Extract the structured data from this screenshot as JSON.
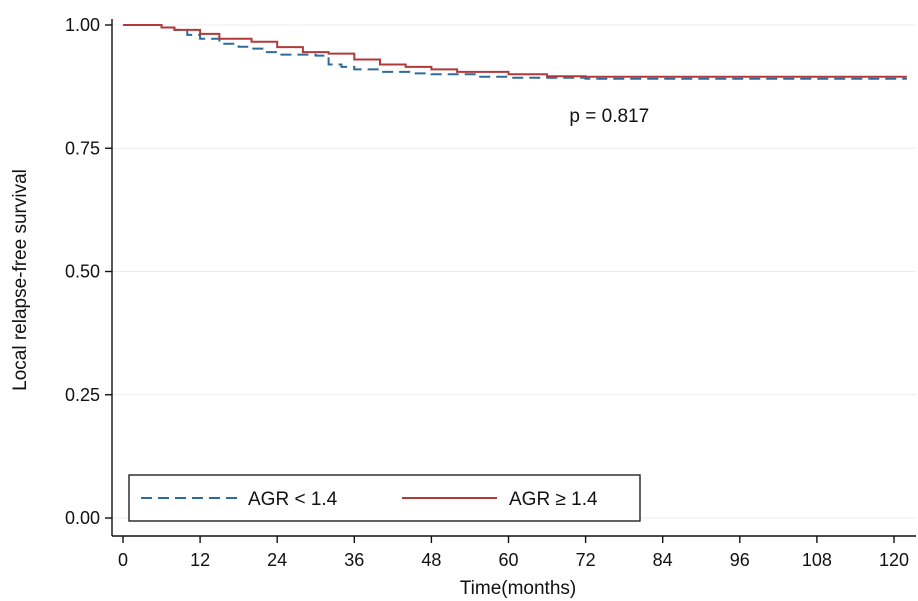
{
  "chart_data": {
    "type": "line",
    "title": "",
    "xlabel": "Time(months)",
    "ylabel": "Local relapse-free survival",
    "xlim": [
      0,
      122
    ],
    "ylim": [
      0,
      1
    ],
    "x_ticks": [
      0,
      12,
      24,
      36,
      48,
      60,
      72,
      84,
      96,
      108,
      120
    ],
    "x_tick_labels": [
      "0",
      "12",
      "24",
      "36",
      "48",
      "60",
      "72",
      "84",
      "96",
      "108",
      "120"
    ],
    "y_ticks": [
      0,
      0.25,
      0.5,
      0.75,
      1.0
    ],
    "y_tick_labels": [
      "0.00",
      "0.25",
      "0.50",
      "0.75",
      "1.00"
    ],
    "grid": "horizontal",
    "annotation": {
      "text": "p = 0.817",
      "x": 76,
      "y": 0.817
    },
    "legend": {
      "placement": "bottom-left",
      "entries": [
        "AGR < 1.4",
        "AGR ≥ 1.4"
      ]
    },
    "series": [
      {
        "name": "AGR < 1.4",
        "color": "#2e6a9c",
        "style": "dashed",
        "points": [
          [
            0,
            1.0
          ],
          [
            5,
            1.0
          ],
          [
            6,
            0.995
          ],
          [
            8,
            0.99
          ],
          [
            10,
            0.98
          ],
          [
            12,
            0.972
          ],
          [
            15,
            0.962
          ],
          [
            18,
            0.956
          ],
          [
            20,
            0.952
          ],
          [
            22,
            0.945
          ],
          [
            24,
            0.94
          ],
          [
            30,
            0.938
          ],
          [
            32,
            0.92
          ],
          [
            34,
            0.915
          ],
          [
            36,
            0.91
          ],
          [
            40,
            0.905
          ],
          [
            45,
            0.902
          ],
          [
            48,
            0.9
          ],
          [
            55,
            0.895
          ],
          [
            60,
            0.893
          ],
          [
            72,
            0.891
          ],
          [
            84,
            0.891
          ],
          [
            96,
            0.891
          ],
          [
            108,
            0.891
          ],
          [
            122,
            0.891
          ]
        ]
      },
      {
        "name": "AGR ≥ 1.4",
        "color": "#b03a3a",
        "style": "solid",
        "points": [
          [
            0,
            1.0
          ],
          [
            5,
            1.0
          ],
          [
            6,
            0.995
          ],
          [
            8,
            0.99
          ],
          [
            12,
            0.982
          ],
          [
            15,
            0.972
          ],
          [
            20,
            0.966
          ],
          [
            24,
            0.955
          ],
          [
            28,
            0.945
          ],
          [
            32,
            0.942
          ],
          [
            36,
            0.93
          ],
          [
            40,
            0.92
          ],
          [
            44,
            0.915
          ],
          [
            48,
            0.91
          ],
          [
            52,
            0.905
          ],
          [
            56,
            0.905
          ],
          [
            60,
            0.9
          ],
          [
            66,
            0.896
          ],
          [
            72,
            0.895
          ],
          [
            84,
            0.895
          ],
          [
            96,
            0.895
          ],
          [
            108,
            0.895
          ],
          [
            122,
            0.895
          ]
        ]
      }
    ]
  }
}
